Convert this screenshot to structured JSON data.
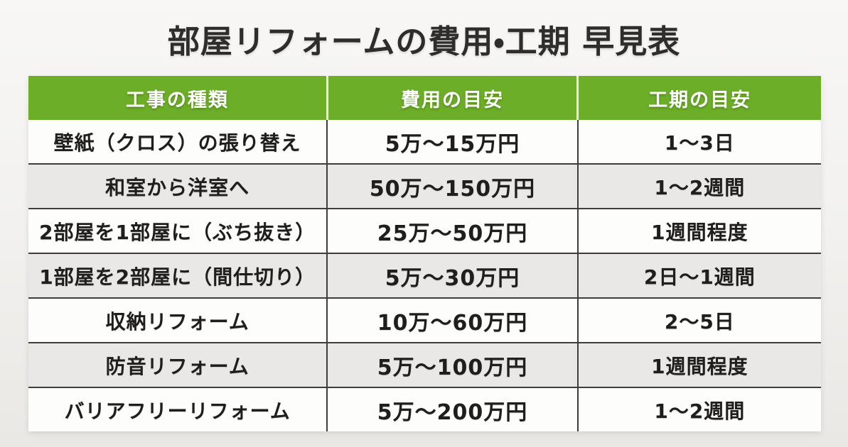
{
  "chart_data": {
    "type": "table",
    "title": "部屋リフォームの費用・工期 早見表",
    "columns": [
      "工事の種類",
      "費用の目安",
      "工期の目安"
    ],
    "rows": [
      [
        "壁紙（クロス）の張り替え",
        "5万〜15万円",
        "1〜3日"
      ],
      [
        "和室から洋室へ",
        "50万〜150万円",
        "1〜2週間"
      ],
      [
        "2部屋を1部屋に（ぶち抜き）",
        "25万〜50万円",
        "1週間程度"
      ],
      [
        "1部屋を2部屋に（間仕切り）",
        "5万〜30万円",
        "2日〜1週間"
      ],
      [
        "収納リフォーム",
        "10万〜60万円",
        "2〜5日"
      ],
      [
        "防音リフォーム",
        "5万〜100万円",
        "1週間程度"
      ],
      [
        "バリアフリーリフォーム",
        "5万〜200万円",
        "1〜2週間"
      ]
    ],
    "layout_hints": {
      "header_background": "#6cae27",
      "header_text_color": "#ffffff",
      "row_background": "#fdfdfc",
      "alt_row_background": "#e9e8e6",
      "grid_line_color": "#3e3d3a",
      "page_background": "#f2f1ef",
      "title_color": "#2e2d2b",
      "row_striping": "alternating",
      "text_alignment": "center"
    }
  }
}
